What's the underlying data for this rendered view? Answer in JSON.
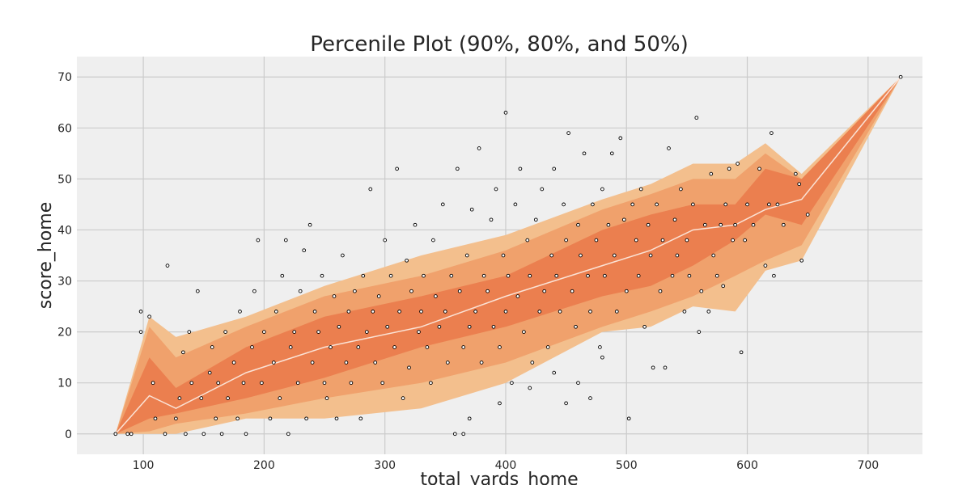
{
  "chart_data": {
    "type": "area",
    "title": "Percenile Plot (90%, 80%, and 50%)",
    "xlabel": "total_yards_home",
    "ylabel": "score_home",
    "xlim": [
      45,
      745
    ],
    "ylim": [
      -4,
      74
    ],
    "xticks": [
      100,
      200,
      300,
      400,
      500,
      600,
      700
    ],
    "yticks": [
      0,
      10,
      20,
      30,
      40,
      50,
      60,
      70
    ],
    "grid": true,
    "colors": {
      "background": "#efefef",
      "grid": "#cbcbcb",
      "band90": "#f3bf8d",
      "band80": "#f0a16c",
      "band50": "#eb7f4f",
      "median": "#fbe3d6",
      "point_edge": "#000000",
      "point_fill": "#ffffff"
    },
    "bands": {
      "x": [
        77,
        105,
        127,
        185,
        250,
        330,
        400,
        480,
        520,
        555,
        590,
        615,
        645,
        727
      ],
      "median": [
        0,
        7.5,
        5,
        12,
        17,
        21,
        27,
        33,
        36,
        40,
        41,
        44,
        46,
        70
      ],
      "p5": [
        0,
        0,
        0,
        3,
        3,
        5,
        10,
        20,
        21,
        25,
        24,
        32,
        34,
        70
      ],
      "p95": [
        0,
        23,
        19,
        23,
        29,
        35,
        39,
        46,
        49,
        53,
        53,
        57,
        51,
        70
      ],
      "p10": [
        0,
        0.5,
        2,
        4,
        7,
        10,
        14,
        21,
        24,
        27,
        31,
        34,
        37,
        70
      ],
      "p90": [
        0,
        21,
        15,
        21,
        27,
        31,
        36,
        44,
        47,
        50,
        50,
        55,
        50,
        70
      ],
      "p25": [
        0,
        3,
        4,
        7,
        11,
        17,
        21,
        27,
        29,
        33,
        38,
        43,
        41,
        70
      ],
      "p75": [
        0,
        15,
        9,
        17,
        23,
        27,
        31,
        40,
        43,
        45,
        45,
        52,
        50,
        70
      ]
    },
    "points": [
      [
        77,
        0
      ],
      [
        87,
        0
      ],
      [
        90,
        0
      ],
      [
        98,
        24
      ],
      [
        98,
        20
      ],
      [
        105,
        23
      ],
      [
        108,
        10
      ],
      [
        110,
        3
      ],
      [
        118,
        0
      ],
      [
        120,
        33
      ],
      [
        127,
        3
      ],
      [
        130,
        7
      ],
      [
        133,
        16
      ],
      [
        135,
        0
      ],
      [
        138,
        20
      ],
      [
        140,
        10
      ],
      [
        145,
        28
      ],
      [
        148,
        7
      ],
      [
        150,
        0
      ],
      [
        155,
        12
      ],
      [
        157,
        17
      ],
      [
        160,
        3
      ],
      [
        162,
        10
      ],
      [
        165,
        0
      ],
      [
        168,
        20
      ],
      [
        170,
        7
      ],
      [
        175,
        14
      ],
      [
        178,
        3
      ],
      [
        180,
        24
      ],
      [
        183,
        10
      ],
      [
        185,
        0
      ],
      [
        190,
        17
      ],
      [
        192,
        28
      ],
      [
        195,
        38
      ],
      [
        198,
        10
      ],
      [
        200,
        20
      ],
      [
        205,
        3
      ],
      [
        208,
        14
      ],
      [
        210,
        24
      ],
      [
        213,
        7
      ],
      [
        215,
        31
      ],
      [
        218,
        38
      ],
      [
        220,
        0
      ],
      [
        222,
        17
      ],
      [
        225,
        20
      ],
      [
        228,
        10
      ],
      [
        230,
        28
      ],
      [
        233,
        36
      ],
      [
        235,
        3
      ],
      [
        238,
        41
      ],
      [
        240,
        14
      ],
      [
        242,
        24
      ],
      [
        245,
        20
      ],
      [
        248,
        31
      ],
      [
        250,
        10
      ],
      [
        252,
        7
      ],
      [
        255,
        17
      ],
      [
        258,
        27
      ],
      [
        260,
        3
      ],
      [
        262,
        21
      ],
      [
        265,
        35
      ],
      [
        268,
        14
      ],
      [
        270,
        24
      ],
      [
        272,
        10
      ],
      [
        275,
        28
      ],
      [
        278,
        17
      ],
      [
        280,
        3
      ],
      [
        282,
        31
      ],
      [
        285,
        20
      ],
      [
        288,
        48
      ],
      [
        290,
        24
      ],
      [
        292,
        14
      ],
      [
        295,
        27
      ],
      [
        298,
        10
      ],
      [
        300,
        38
      ],
      [
        302,
        21
      ],
      [
        305,
        31
      ],
      [
        308,
        17
      ],
      [
        310,
        52
      ],
      [
        312,
        24
      ],
      [
        315,
        7
      ],
      [
        318,
        34
      ],
      [
        320,
        13
      ],
      [
        322,
        28
      ],
      [
        325,
        41
      ],
      [
        328,
        20
      ],
      [
        330,
        24
      ],
      [
        332,
        31
      ],
      [
        335,
        17
      ],
      [
        338,
        10
      ],
      [
        340,
        38
      ],
      [
        342,
        27
      ],
      [
        345,
        21
      ],
      [
        348,
        45
      ],
      [
        350,
        24
      ],
      [
        352,
        14
      ],
      [
        355,
        31
      ],
      [
        358,
        0
      ],
      [
        360,
        52
      ],
      [
        362,
        28
      ],
      [
        365,
        17
      ],
      [
        368,
        35
      ],
      [
        370,
        21
      ],
      [
        372,
        44
      ],
      [
        375,
        24
      ],
      [
        378,
        56
      ],
      [
        380,
        14
      ],
      [
        382,
        31
      ],
      [
        385,
        28
      ],
      [
        388,
        42
      ],
      [
        390,
        21
      ],
      [
        392,
        48
      ],
      [
        395,
        17
      ],
      [
        398,
        35
      ],
      [
        400,
        24
      ],
      [
        402,
        31
      ],
      [
        405,
        10
      ],
      [
        408,
        45
      ],
      [
        410,
        27
      ],
      [
        412,
        52
      ],
      [
        415,
        20
      ],
      [
        418,
        38
      ],
      [
        420,
        31
      ],
      [
        422,
        14
      ],
      [
        425,
        42
      ],
      [
        428,
        24
      ],
      [
        430,
        48
      ],
      [
        432,
        28
      ],
      [
        435,
        17
      ],
      [
        438,
        35
      ],
      [
        440,
        52
      ],
      [
        442,
        31
      ],
      [
        445,
        24
      ],
      [
        448,
        45
      ],
      [
        450,
        38
      ],
      [
        452,
        59
      ],
      [
        455,
        28
      ],
      [
        458,
        21
      ],
      [
        460,
        41
      ],
      [
        462,
        35
      ],
      [
        465,
        55
      ],
      [
        468,
        31
      ],
      [
        470,
        24
      ],
      [
        472,
        45
      ],
      [
        475,
        38
      ],
      [
        478,
        17
      ],
      [
        480,
        48
      ],
      [
        482,
        31
      ],
      [
        485,
        41
      ],
      [
        488,
        55
      ],
      [
        490,
        35
      ],
      [
        492,
        24
      ],
      [
        495,
        58
      ],
      [
        498,
        42
      ],
      [
        500,
        28
      ],
      [
        502,
        3
      ],
      [
        505,
        45
      ],
      [
        508,
        38
      ],
      [
        510,
        31
      ],
      [
        512,
        48
      ],
      [
        515,
        21
      ],
      [
        518,
        41
      ],
      [
        520,
        35
      ],
      [
        522,
        13
      ],
      [
        525,
        45
      ],
      [
        528,
        28
      ],
      [
        530,
        38
      ],
      [
        532,
        13
      ],
      [
        535,
        56
      ],
      [
        538,
        31
      ],
      [
        540,
        42
      ],
      [
        542,
        35
      ],
      [
        545,
        48
      ],
      [
        548,
        24
      ],
      [
        550,
        38
      ],
      [
        552,
        31
      ],
      [
        555,
        45
      ],
      [
        558,
        62
      ],
      [
        560,
        20
      ],
      [
        562,
        28
      ],
      [
        565,
        41
      ],
      [
        568,
        24
      ],
      [
        570,
        51
      ],
      [
        572,
        35
      ],
      [
        575,
        31
      ],
      [
        578,
        41
      ],
      [
        580,
        29
      ],
      [
        582,
        45
      ],
      [
        585,
        52
      ],
      [
        588,
        38
      ],
      [
        590,
        41
      ],
      [
        592,
        53
      ],
      [
        595,
        16
      ],
      [
        598,
        38
      ],
      [
        600,
        45
      ],
      [
        605,
        41
      ],
      [
        610,
        52
      ],
      [
        615,
        33
      ],
      [
        618,
        45
      ],
      [
        620,
        59
      ],
      [
        622,
        31
      ],
      [
        625,
        45
      ],
      [
        630,
        41
      ],
      [
        640,
        51
      ],
      [
        643,
        49
      ],
      [
        645,
        34
      ],
      [
        650,
        43
      ],
      [
        727,
        70
      ],
      [
        400,
        63
      ],
      [
        365,
        0
      ],
      [
        370,
        3
      ],
      [
        395,
        6
      ],
      [
        420,
        9
      ],
      [
        440,
        12
      ],
      [
        460,
        10
      ],
      [
        470,
        7
      ],
      [
        450,
        6
      ],
      [
        480,
        15
      ]
    ]
  }
}
